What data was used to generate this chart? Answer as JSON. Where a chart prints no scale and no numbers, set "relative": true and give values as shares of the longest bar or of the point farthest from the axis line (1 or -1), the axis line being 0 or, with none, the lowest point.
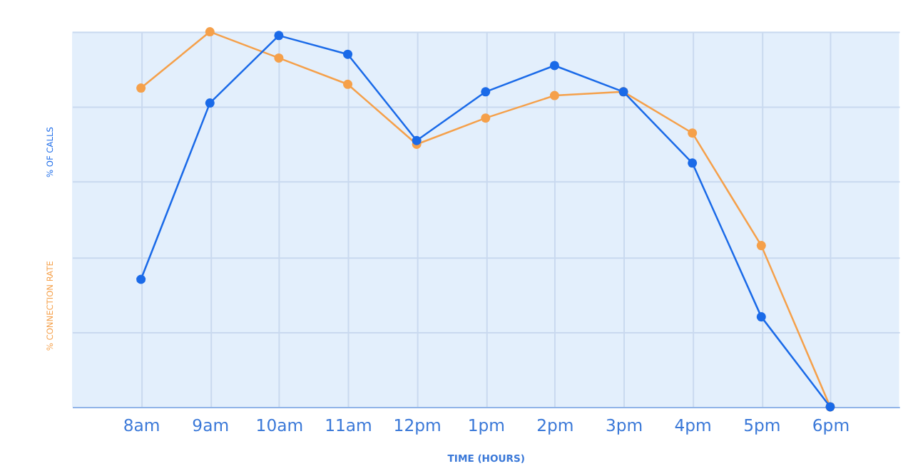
{
  "chart_data": {
    "type": "line",
    "relative": true,
    "xlabel": "TIME (HOURS)",
    "ylabel": "% OF CALLS",
    "y2label": "% CONNECTION RATE",
    "categories": [
      "8am",
      "9am",
      "10am",
      "11am",
      "12pm",
      "1pm",
      "2pm",
      "3pm",
      "4pm",
      "5pm",
      "6pm"
    ],
    "series": [
      {
        "color": "#f5a04a",
        "values": [
          0.85,
          1.0,
          0.93,
          0.86,
          0.7,
          0.77,
          0.83,
          0.84,
          0.73,
          0.43,
          0
        ]
      },
      {
        "color": "#1a6ae8",
        "values": [
          0.34,
          0.81,
          0.99,
          0.94,
          0.71,
          0.84,
          0.91,
          0.84,
          0.65,
          0.24,
          0
        ]
      }
    ],
    "grid": true,
    "marker": "circle",
    "line_style": "solid"
  }
}
